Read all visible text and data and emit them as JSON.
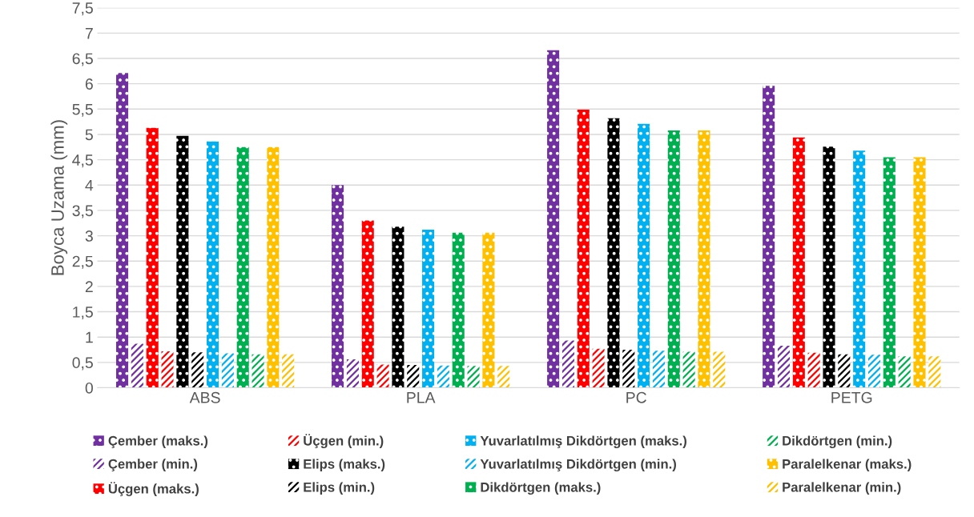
{
  "chart_data": {
    "type": "bar",
    "ylabel": "Boyca Uzama (mm)",
    "categories": [
      "ABS",
      "PLA",
      "PC",
      "PETG"
    ],
    "series": [
      {
        "name": "Çember (maks.)",
        "color": "#7030a0",
        "values": [
          6.21,
          4.0,
          6.66,
          5.96
        ]
      },
      {
        "name": "Çember (min.)",
        "color": "#7030a0",
        "values": [
          0.87,
          0.56,
          0.93,
          0.83
        ]
      },
      {
        "name": "Üçgen (maks.)",
        "color": "#ff0000",
        "values": [
          5.13,
          3.3,
          5.49,
          4.94
        ]
      },
      {
        "name": "Üçgen (min.)",
        "color": "#ff0000",
        "values": [
          0.72,
          0.46,
          0.77,
          0.69
        ]
      },
      {
        "name": "Elips (maks.)",
        "color": "#000000",
        "values": [
          4.97,
          3.18,
          5.32,
          4.76
        ]
      },
      {
        "name": "Elips (min.)",
        "color": "#000000",
        "values": [
          0.7,
          0.45,
          0.75,
          0.66
        ]
      },
      {
        "name": "Yuvarlatılmış Dikdörtgen (maks.)",
        "color": "#00b0f0",
        "values": [
          4.86,
          3.12,
          5.21,
          4.68
        ]
      },
      {
        "name": "Yuvarlatılmış Dikdörtgen (min.)",
        "color": "#00b0f0",
        "values": [
          0.68,
          0.44,
          0.73,
          0.65
        ]
      },
      {
        "name": "Dikdörtgen (maks.)",
        "color": "#00b050",
        "values": [
          4.75,
          3.06,
          5.08,
          4.55
        ]
      },
      {
        "name": "Dikdörtgen (min.)",
        "color": "#00b050",
        "values": [
          0.66,
          0.43,
          0.71,
          0.62
        ]
      },
      {
        "name": "Paralelkenar (maks.)",
        "color": "#ffc000",
        "values": [
          4.75,
          3.06,
          5.08,
          4.55
        ]
      },
      {
        "name": "Paralelkenar (min.)",
        "color": "#ffc000",
        "values": [
          0.66,
          0.43,
          0.71,
          0.62
        ]
      }
    ],
    "ylim": [
      0,
      7.5
    ],
    "yticks": [
      0,
      {
        "value": 0.5,
        "label": "0,5"
      },
      1,
      {
        "value": 1.5,
        "label": "1,5"
      },
      2,
      {
        "value": 2.5,
        "label": "2,5"
      },
      3,
      {
        "value": 3.5,
        "label": "3,5"
      },
      4,
      {
        "value": 4.5,
        "label": "4,5"
      },
      5,
      {
        "value": 5.5,
        "label": "5,5"
      },
      6,
      {
        "value": 6.5,
        "label": "6,5"
      },
      7,
      {
        "value": 7.5,
        "label": "7,5"
      }
    ],
    "grid": "y",
    "legend": "bottom"
  }
}
